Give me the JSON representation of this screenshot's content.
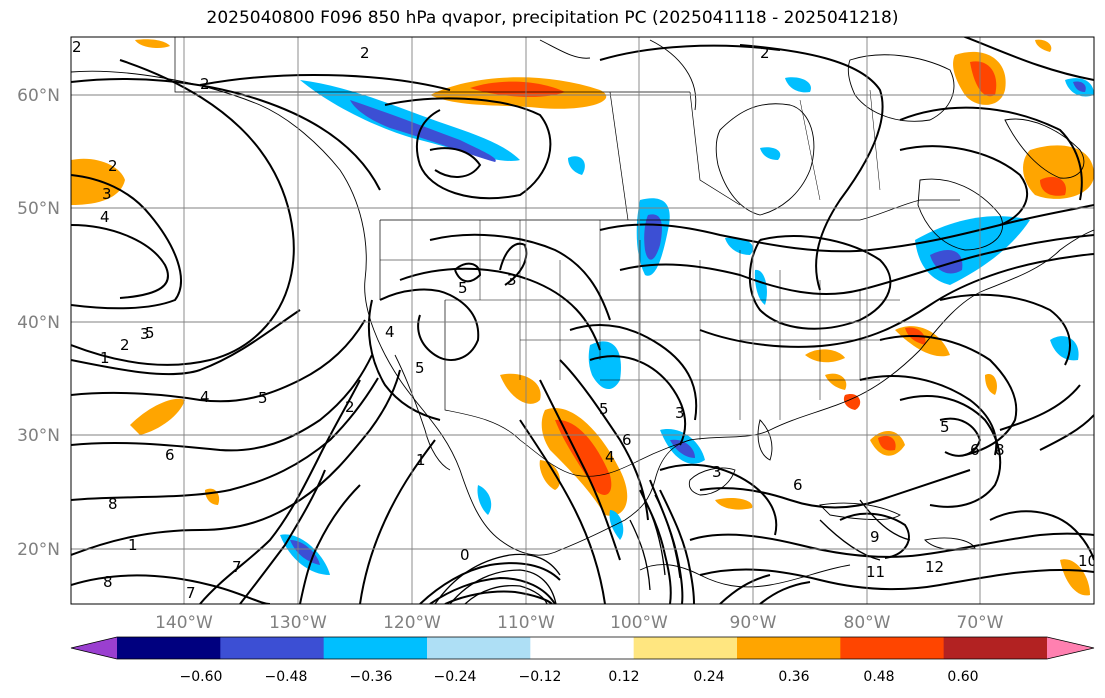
{
  "title": "2025040800 F096 850 hPa qvapor, precipitation PC (2025041118 - 2025041218)",
  "lat_labels": [
    "60°N",
    "50°N",
    "40°N",
    "30°N",
    "20°N"
  ],
  "lon_labels": [
    "140°W",
    "130°W",
    "120°W",
    "110°W",
    "100°W",
    "90°W",
    "80°W",
    "70°W"
  ],
  "colorbar": {
    "ticks": [
      "−0.60",
      "−0.48",
      "−0.36",
      "−0.24",
      "−0.12",
      "0.12",
      "0.24",
      "0.36",
      "0.48",
      "0.60"
    ],
    "colors": [
      "#9a3fd0",
      "#00007f",
      "#3c4fd4",
      "#00bfff",
      "#aedff5",
      "#ffffff",
      "#ffe680",
      "#ffa500",
      "#ff4500",
      "#b22222",
      "#ff80b0"
    ]
  },
  "contour_labels": [
    "2",
    "2",
    "2",
    "2",
    "2",
    "3",
    "4",
    "5",
    "3",
    "2",
    "1",
    "4",
    "5",
    "6",
    "8",
    "7",
    "8",
    "7",
    "1",
    "5",
    "4",
    "5",
    "2",
    "1",
    "3",
    "6",
    "6",
    "5",
    "4",
    "3",
    "5",
    "6",
    "3",
    "8",
    "9",
    "11",
    "12",
    "10",
    "0"
  ]
}
